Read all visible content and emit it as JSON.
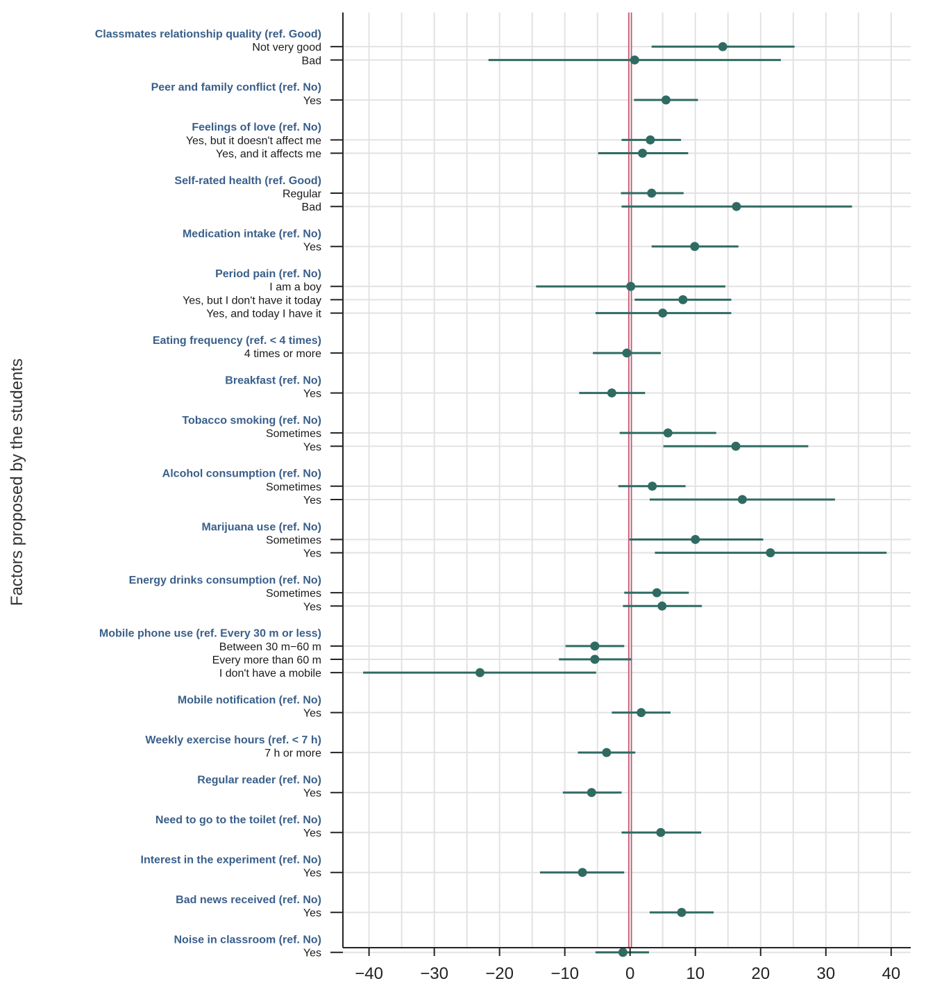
{
  "chart_data": {
    "type": "forest",
    "ylabel": "Factors proposed by the students",
    "xlim": [
      -44,
      43
    ],
    "xticks": [
      -40,
      -30,
      -20,
      -10,
      0,
      10,
      20,
      30,
      40
    ],
    "xtick_labels": [
      "−40",
      "−30",
      "−20",
      "−10",
      "0",
      "10",
      "20",
      "30",
      "40"
    ],
    "reference_line": 0,
    "colors": {
      "marker": "#2f6b62",
      "reference": "#c8506e",
      "group_label": "#3a5f8a",
      "grid": "#e2e2e2"
    },
    "rows": [
      {
        "kind": "group",
        "label": "Classmates relationship quality (ref. Good)"
      },
      {
        "kind": "item",
        "label": "Not very good",
        "est": 14.2,
        "lo": 3.3,
        "hi": 25.2
      },
      {
        "kind": "item",
        "label": "Bad",
        "est": 0.7,
        "lo": -21.7,
        "hi": 23.1
      },
      {
        "kind": "gap"
      },
      {
        "kind": "group",
        "label": "Peer and family conflict (ref. No)"
      },
      {
        "kind": "item",
        "label": "Yes",
        "est": 5.5,
        "lo": 0.6,
        "hi": 10.4
      },
      {
        "kind": "gap"
      },
      {
        "kind": "group",
        "label": "Feelings of love (ref. No)"
      },
      {
        "kind": "item",
        "label": "Yes, but it doesn't affect me",
        "est": 3.1,
        "lo": -1.3,
        "hi": 7.8
      },
      {
        "kind": "item",
        "label": "Yes, and it affects me",
        "est": 1.9,
        "lo": -4.9,
        "hi": 8.9
      },
      {
        "kind": "gap"
      },
      {
        "kind": "group",
        "label": "Self-rated health (ref. Good)"
      },
      {
        "kind": "item",
        "label": "Regular",
        "est": 3.3,
        "lo": -1.4,
        "hi": 8.2
      },
      {
        "kind": "item",
        "label": "Bad",
        "est": 16.3,
        "lo": -1.3,
        "hi": 34.0
      },
      {
        "kind": "gap"
      },
      {
        "kind": "group",
        "label": "Medication intake (ref. No)"
      },
      {
        "kind": "item",
        "label": "Yes",
        "est": 9.9,
        "lo": 3.3,
        "hi": 16.6
      },
      {
        "kind": "gap"
      },
      {
        "kind": "group",
        "label": "Period pain (ref. No)"
      },
      {
        "kind": "item",
        "label": "I am a boy",
        "est": 0.1,
        "lo": -14.4,
        "hi": 14.6
      },
      {
        "kind": "item",
        "label": "Yes, but I don't have it today",
        "est": 8.1,
        "lo": 0.7,
        "hi": 15.5
      },
      {
        "kind": "item",
        "label": "Yes, and today I have it",
        "est": 5.0,
        "lo": -5.3,
        "hi": 15.5
      },
      {
        "kind": "gap"
      },
      {
        "kind": "group",
        "label": "Eating frequency (ref. < 4 times)"
      },
      {
        "kind": "item",
        "label": "4 times or more",
        "est": -0.5,
        "lo": -5.7,
        "hi": 4.7
      },
      {
        "kind": "gap"
      },
      {
        "kind": "group",
        "label": "Breakfast (ref. No)"
      },
      {
        "kind": "item",
        "label": "Yes",
        "est": -2.8,
        "lo": -7.8,
        "hi": 2.3
      },
      {
        "kind": "gap"
      },
      {
        "kind": "group",
        "label": "Tobacco smoking (ref. No)"
      },
      {
        "kind": "item",
        "label": "Sometimes",
        "est": 5.8,
        "lo": -1.6,
        "hi": 13.2
      },
      {
        "kind": "item",
        "label": "Yes",
        "est": 16.2,
        "lo": 5.1,
        "hi": 27.3
      },
      {
        "kind": "gap"
      },
      {
        "kind": "group",
        "label": "Alcohol consumption (ref. No)"
      },
      {
        "kind": "item",
        "label": "Sometimes",
        "est": 3.4,
        "lo": -1.8,
        "hi": 8.5
      },
      {
        "kind": "item",
        "label": "Yes",
        "est": 17.2,
        "lo": 3.0,
        "hi": 31.4
      },
      {
        "kind": "gap"
      },
      {
        "kind": "group",
        "label": "Marijuana use (ref. No)"
      },
      {
        "kind": "item",
        "label": "Sometimes",
        "est": 10.0,
        "lo": -0.1,
        "hi": 20.4
      },
      {
        "kind": "item",
        "label": "Yes",
        "est": 21.5,
        "lo": 3.8,
        "hi": 39.3
      },
      {
        "kind": "gap"
      },
      {
        "kind": "group",
        "label": "Energy drinks consumption (ref. No)"
      },
      {
        "kind": "item",
        "label": "Sometimes",
        "est": 4.1,
        "lo": -0.9,
        "hi": 9.0
      },
      {
        "kind": "item",
        "label": "Yes",
        "est": 4.9,
        "lo": -1.1,
        "hi": 11.0
      },
      {
        "kind": "gap"
      },
      {
        "kind": "group",
        "label": "Mobile phone use (ref. Every 30 m or less)"
      },
      {
        "kind": "item",
        "label": "Between 30 m−60 m",
        "est": -5.4,
        "lo": -9.9,
        "hi": -0.9
      },
      {
        "kind": "item",
        "label": "Every more than 60 m",
        "est": -5.4,
        "lo": -10.9,
        "hi": 0.2
      },
      {
        "kind": "item",
        "label": "I don't have a mobile",
        "est": -23.0,
        "lo": -40.9,
        "hi": -5.2
      },
      {
        "kind": "gap"
      },
      {
        "kind": "group",
        "label": "Mobile notification (ref. No)"
      },
      {
        "kind": "item",
        "label": "Yes",
        "est": 1.7,
        "lo": -2.8,
        "hi": 6.2
      },
      {
        "kind": "gap"
      },
      {
        "kind": "group",
        "label": "Weekly exercise hours (ref. < 7 h)"
      },
      {
        "kind": "item",
        "label": "7 h or more",
        "est": -3.6,
        "lo": -8.0,
        "hi": 0.8
      },
      {
        "kind": "gap"
      },
      {
        "kind": "group",
        "label": "Regular reader (ref. No)"
      },
      {
        "kind": "item",
        "label": "Yes",
        "est": -5.9,
        "lo": -10.3,
        "hi": -1.3
      },
      {
        "kind": "gap"
      },
      {
        "kind": "group",
        "label": "Need to go to the toilet (ref. No)"
      },
      {
        "kind": "item",
        "label": "Yes",
        "est": 4.7,
        "lo": -1.3,
        "hi": 10.9
      },
      {
        "kind": "gap"
      },
      {
        "kind": "group",
        "label": "Interest in the experiment (ref. No)"
      },
      {
        "kind": "item",
        "label": "Yes",
        "est": -7.3,
        "lo": -13.8,
        "hi": -0.9
      },
      {
        "kind": "gap"
      },
      {
        "kind": "group",
        "label": "Bad news received (ref. No)"
      },
      {
        "kind": "item",
        "label": "Yes",
        "est": 7.9,
        "lo": 3.0,
        "hi": 12.8
      },
      {
        "kind": "gap"
      },
      {
        "kind": "group",
        "label": "Noise in classroom (ref. No)"
      },
      {
        "kind": "item",
        "label": "Yes",
        "est": -1.1,
        "lo": -5.3,
        "hi": 2.9
      }
    ]
  }
}
